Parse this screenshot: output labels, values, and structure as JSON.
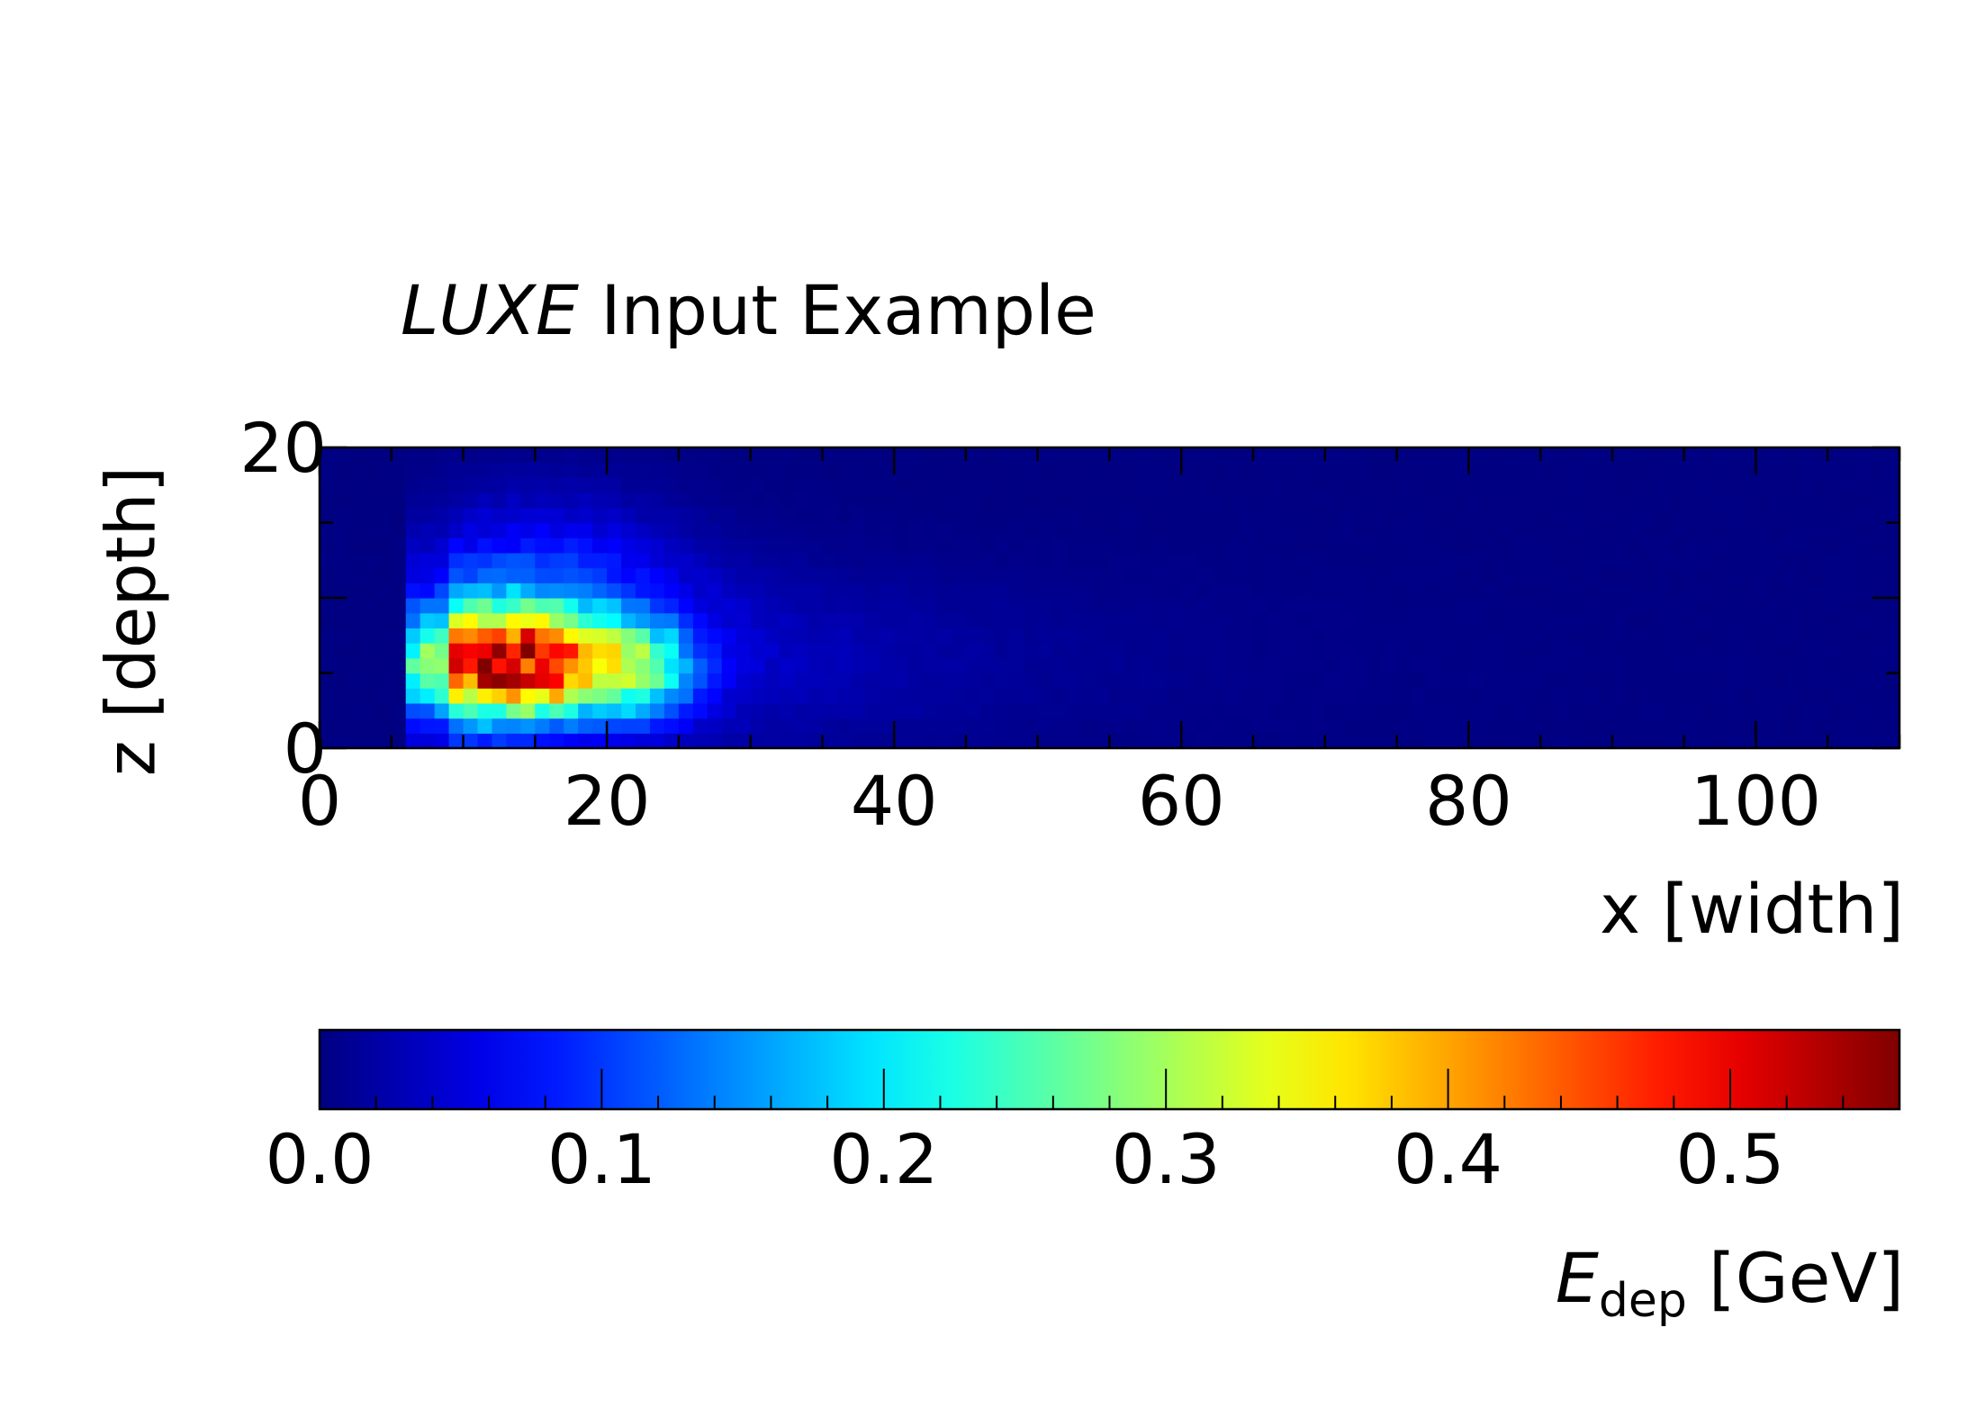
{
  "chart_data": {
    "type": "heatmap",
    "title_prefix": "LUXE",
    "title_rest": " Input Example",
    "xlabel": "x [width]",
    "ylabel": "z [depth]",
    "xlim": [
      0,
      110
    ],
    "ylim": [
      0,
      20
    ],
    "x_ticks": [
      "0",
      "20",
      "40",
      "60",
      "80",
      "100"
    ],
    "y_ticks": [
      "0",
      "20"
    ],
    "colormap": "jet",
    "grid": false,
    "colorbar": {
      "label_symbol": "E",
      "label_subscript": "dep",
      "label_unit": " [GeV]",
      "range": [
        0,
        0.56
      ],
      "ticks": [
        "0.0",
        "0.1",
        "0.2",
        "0.3",
        "0.4",
        "0.5"
      ]
    },
    "bins": {
      "x": 110,
      "z": 20
    },
    "peak": {
      "x": 11,
      "z": 5,
      "value": 0.56
    },
    "hotspots": [
      {
        "x": 11,
        "z": 6,
        "value": 0.5
      },
      {
        "x": 12,
        "z": 5,
        "value": 0.48
      },
      {
        "x": 13,
        "z": 6,
        "value": 0.47
      },
      {
        "x": 15,
        "z": 5,
        "value": 0.5
      },
      {
        "x": 15,
        "z": 6,
        "value": 0.46
      },
      {
        "x": 14,
        "z": 5,
        "value": 0.42
      },
      {
        "x": 17,
        "z": 5,
        "value": 0.41
      },
      {
        "x": 18,
        "z": 5,
        "value": 0.38
      }
    ]
  }
}
